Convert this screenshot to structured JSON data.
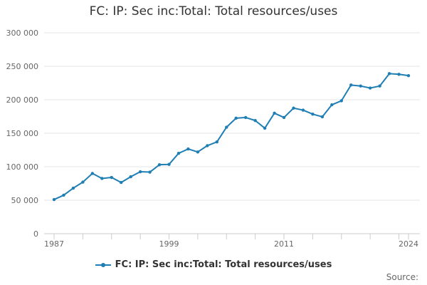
{
  "chart_data": {
    "type": "line",
    "title": "FC: IP: Sec inc:Total: Total resources/uses",
    "xlabel": "",
    "ylabel": "",
    "ylim": [
      0,
      300000
    ],
    "yticks": [
      0,
      50000,
      100000,
      150000,
      200000,
      250000,
      300000
    ],
    "ytick_labels": [
      "0",
      "50 000",
      "100 000",
      "150 000",
      "200 000",
      "250 000",
      "300 000"
    ],
    "xticks": [
      1987,
      1999,
      2011,
      2024
    ],
    "xtick_labels": [
      "1987",
      "1999",
      "2011",
      "2024"
    ],
    "grid": true,
    "legend_position": "bottom",
    "series": [
      {
        "name": "FC: IP: Sec inc:Total: Total resources/uses",
        "color": "#1f7fb4",
        "x": [
          1987,
          1988,
          1989,
          1990,
          1991,
          1992,
          1993,
          1994,
          1995,
          1996,
          1997,
          1998,
          1999,
          2000,
          2001,
          2002,
          2003,
          2004,
          2005,
          2006,
          2007,
          2008,
          2009,
          2010,
          2011,
          2012,
          2013,
          2014,
          2015,
          2016,
          2017,
          2018,
          2019,
          2020,
          2021,
          2022,
          2023,
          2024
        ],
        "values": [
          51000,
          57500,
          68000,
          77000,
          90000,
          82500,
          84000,
          76500,
          85000,
          92500,
          92000,
          103000,
          103500,
          120000,
          126500,
          122000,
          131500,
          137000,
          159000,
          172500,
          173500,
          169000,
          157500,
          180000,
          173500,
          187500,
          184500,
          178500,
          174500,
          192500,
          198500,
          222000,
          220500,
          217500,
          220500,
          239000,
          238000,
          236000
        ]
      }
    ]
  },
  "legend": {
    "label": "FC: IP: Sec inc:Total: Total resources/uses"
  },
  "source": {
    "label": "Source:"
  }
}
